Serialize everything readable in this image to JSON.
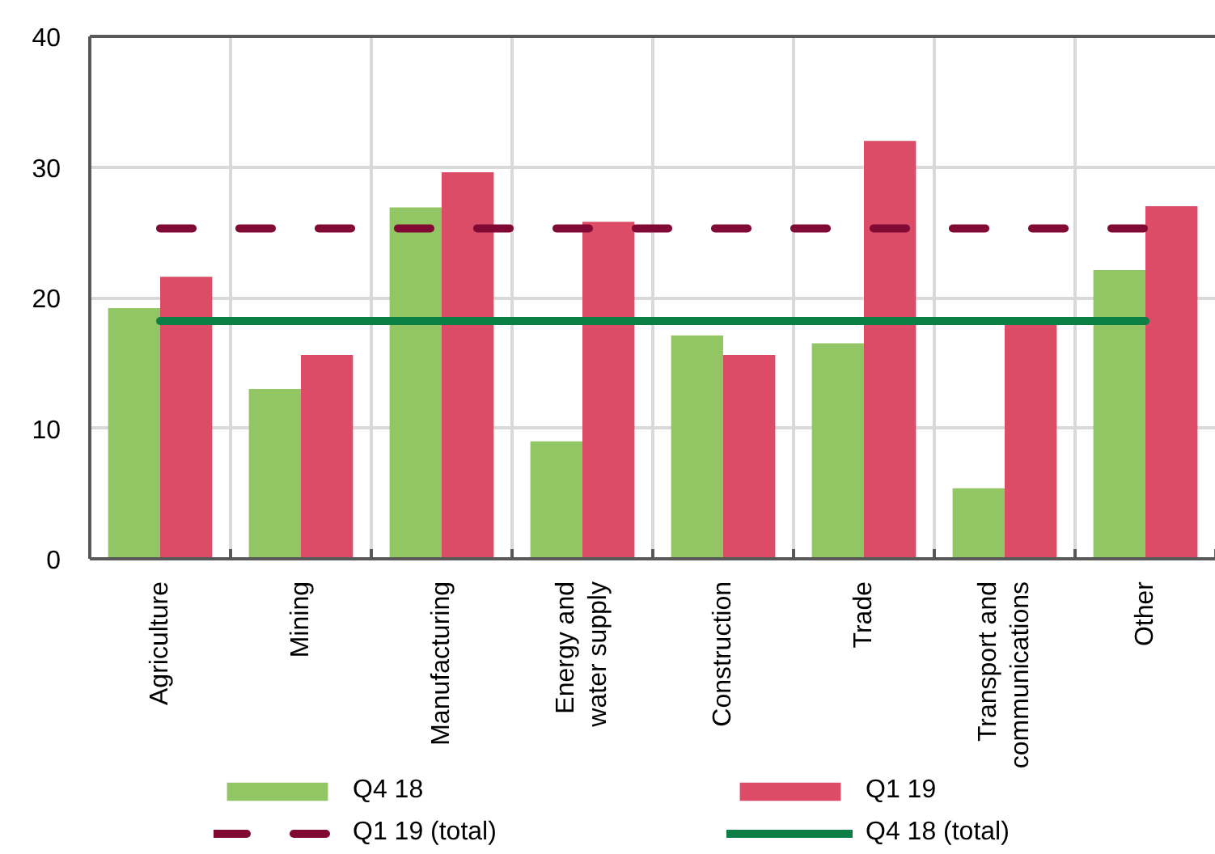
{
  "chart_data": {
    "type": "bar",
    "categories": [
      "Agriculture",
      "Mining",
      "Manufacturing",
      "Energy and water supply",
      "Construction",
      "Trade",
      "Transport and communications",
      "Other"
    ],
    "series": [
      {
        "name": "Q4 18",
        "color": "#92c665",
        "values": [
          19.2,
          13.0,
          26.9,
          9.0,
          17.1,
          16.5,
          5.4,
          22.1
        ]
      },
      {
        "name": "Q1 19",
        "color": "#dc4c66",
        "values": [
          21.6,
          15.6,
          29.6,
          25.8,
          15.6,
          32.0,
          17.9,
          27.0
        ]
      },
      {
        "name": "Q1 19 (total)",
        "type": "line",
        "line_style": "dashed",
        "color": "#800a34",
        "values": [
          25.3,
          25.3,
          25.3,
          25.3,
          25.3,
          25.3,
          25.3,
          25.3
        ]
      },
      {
        "name": "Q4 18 (total)",
        "type": "line",
        "line_style": "solid",
        "color": "#0b7f45",
        "values": [
          18.2,
          18.2,
          18.2,
          18.2,
          18.2,
          18.2,
          18.2,
          18.2
        ]
      }
    ],
    "ylim": [
      0,
      40
    ],
    "yticks": [
      0,
      10,
      20,
      30,
      40
    ],
    "grid": true,
    "legend": "bottom"
  }
}
